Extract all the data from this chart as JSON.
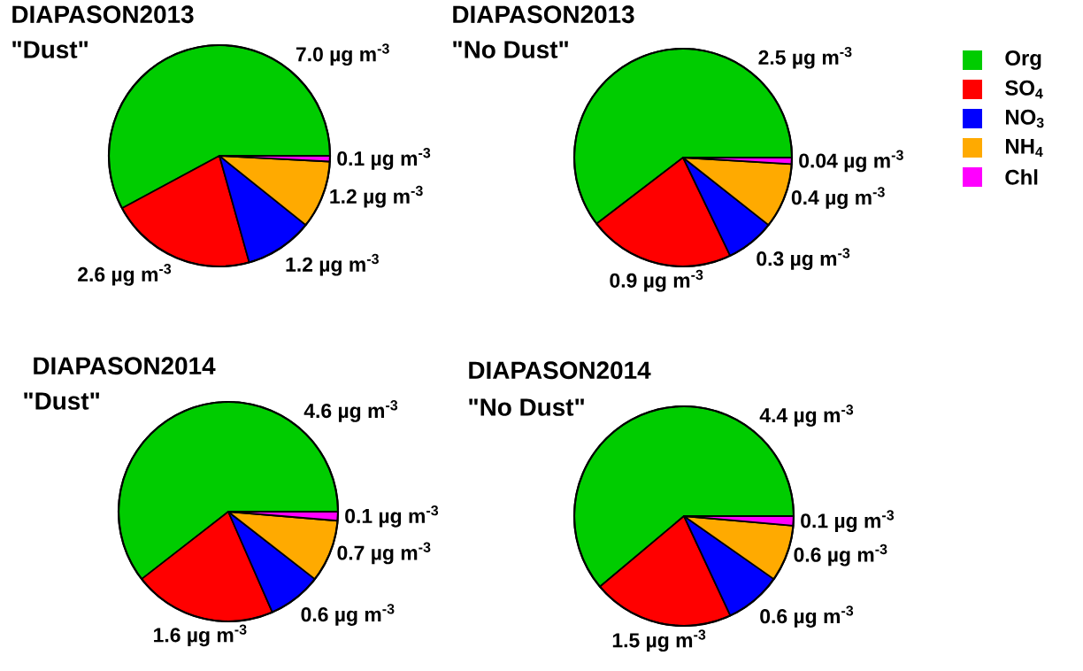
{
  "chart_data": [
    {
      "type": "pie",
      "title": "DIAPASON2013",
      "subtitle": "\"Dust\"",
      "categories": [
        null,
        null,
        null,
        null,
        null
      ],
      "values": [
        7.0,
        2.6,
        1.2,
        1.2,
        0.1
      ],
      "colors": [
        "#00cc00",
        "#ff0000",
        "#0000ff",
        "#ffaa00",
        "#ff00ff"
      ],
      "value_labels": [
        "7.0 µg m$^{-3}$",
        "2.6 µg m$^{-3}$",
        "1.2 µg m$^{-3}$",
        "1.2 µg m$^{-3}$",
        "0.1 µg m$^{-3}$"
      ],
      "legend": false
    },
    {
      "type": "pie",
      "title": "DIAPASON2013",
      "subtitle": "\"No Dust\"",
      "categories": [
        "Org",
        "SO$_{4}$",
        "NO$_{3}$",
        "NH$_{4}$",
        "Chl"
      ],
      "values": [
        2.5,
        0.9,
        0.3,
        0.4,
        0.04
      ],
      "colors": [
        "#00cc00",
        "#ff0000",
        "#0000ff",
        "#ffaa00",
        "#ff00ff"
      ],
      "value_labels": [
        "2.5 µg m$^{-3}$",
        "0.9 µg m$^{-3}$",
        "0.3 µg m$^{-3}$",
        "0.4 µg m$^{-3}$",
        "0.04 µg m$^{-3}$"
      ],
      "legend": "right"
    },
    {
      "type": "pie",
      "title": "DIAPASON2014",
      "subtitle": "\"Dust\"",
      "categories": [
        null,
        null,
        null,
        null,
        null
      ],
      "values": [
        4.6,
        1.6,
        0.6,
        0.7,
        0.1
      ],
      "colors": [
        "#00cc00",
        "#ff0000",
        "#0000ff",
        "#ffaa00",
        "#ff00ff"
      ],
      "value_labels": [
        "4.6 µg m$^{-3}$",
        "1.6 µg m$^{-3}$",
        "0.6 µg m$^{-3}$",
        "0.7 µg m$^{-3}$",
        "0.1 µg m$^{-3}$"
      ],
      "legend": false
    },
    {
      "type": "pie",
      "title": "DIAPASON2014",
      "subtitle": "\"No Dust\"",
      "categories": [
        null,
        null,
        null,
        null,
        null
      ],
      "values": [
        4.4,
        1.5,
        0.6,
        0.6,
        0.1
      ],
      "colors": [
        "#00cc00",
        "#ff0000",
        "#0000ff",
        "#ffaa00",
        "#ff00ff"
      ],
      "value_labels": [
        "4.4 µg m$^{-3}$",
        "1.5 µg m$^{-3}$",
        "0.6 µg m$^{-3}$",
        "0.6 µg m$^{-3}$",
        "0.1 µg m$^{-3}$"
      ],
      "legend": false
    }
  ]
}
